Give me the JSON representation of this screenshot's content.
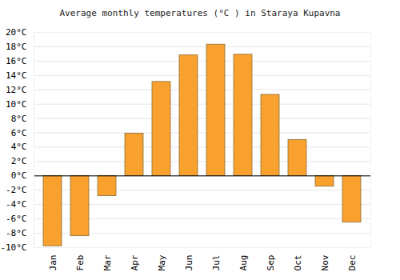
{
  "chart_data": {
    "type": "bar",
    "title": "Average monthly temperatures (°C ) in Staraya Kupavna",
    "categories": [
      "Jan",
      "Feb",
      "Mar",
      "Apr",
      "May",
      "Jun",
      "Jul",
      "Aug",
      "Sep",
      "Oct",
      "Nov",
      "Dec"
    ],
    "values": [
      -9.8,
      -8.4,
      -2.8,
      5.9,
      13.1,
      16.8,
      18.3,
      16.9,
      11.3,
      5.0,
      -1.5,
      -6.5
    ],
    "color": "#f9a12e",
    "ylim": [
      -10,
      20
    ],
    "yticks": [
      {
        "value": -10,
        "label": "-10°C"
      },
      {
        "value": -8,
        "label": "-8°C"
      },
      {
        "value": -6,
        "label": "-6°C"
      },
      {
        "value": -4,
        "label": "-4°C"
      },
      {
        "value": -2,
        "label": "-2°C"
      },
      {
        "value": 0,
        "label": "0°C"
      },
      {
        "value": 2,
        "label": "2°C"
      },
      {
        "value": 4,
        "label": "4°C"
      },
      {
        "value": 6,
        "label": "6°C"
      },
      {
        "value": 8,
        "label": "8°C"
      },
      {
        "value": 10,
        "label": "10°C"
      },
      {
        "value": 12,
        "label": "12°C"
      },
      {
        "value": 14,
        "label": "14°C"
      },
      {
        "value": 16,
        "label": "16°C"
      },
      {
        "value": 18,
        "label": "18°C"
      },
      {
        "value": 20,
        "label": "20°C"
      }
    ],
    "grid": true
  }
}
